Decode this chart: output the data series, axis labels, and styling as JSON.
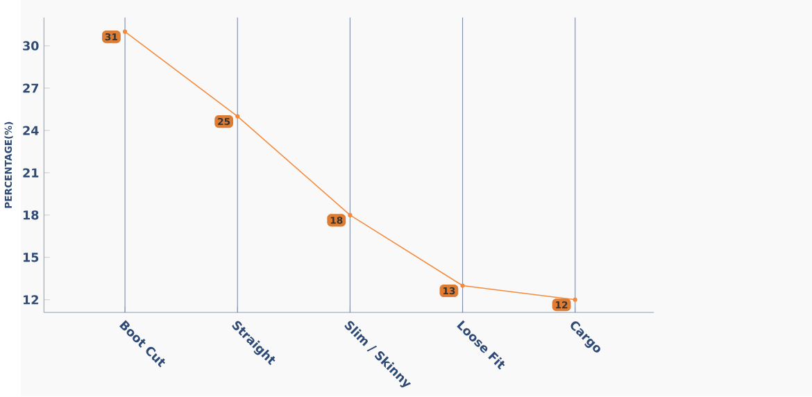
{
  "chart_data": {
    "type": "line",
    "ylabel": "PERCENTAGE(%)",
    "categories": [
      "Boot Cut",
      "Straight",
      "Slim / Skinny",
      "Loose Fit",
      "Cargo"
    ],
    "series": [
      {
        "color": "#f58a3c",
        "values": [
          31,
          25,
          18,
          13,
          12
        ]
      }
    ],
    "ylim": [
      11.1,
      32
    ],
    "yticks": [
      12,
      15,
      18,
      21,
      24,
      27,
      30
    ],
    "grid": "x",
    "marker": "circle",
    "line_style": "solid",
    "data_labels": true
  }
}
